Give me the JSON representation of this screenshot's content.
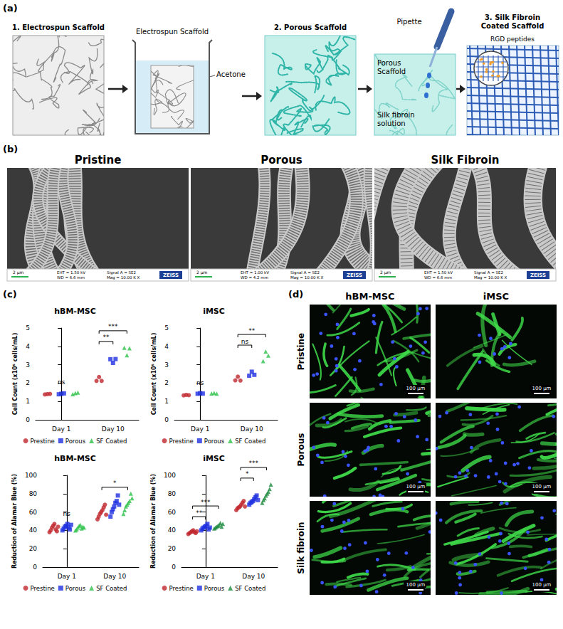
{
  "panel_labels": [
    "(a)",
    "(b)",
    "(c)",
    "(d)"
  ],
  "schematic": {
    "step1": "1. Electrospun Scaffold",
    "beaker_scaffold": "Electrospun Scaffold",
    "solvent": "Acetone",
    "step2": "2. Porous Scaffold",
    "pipette": "Pipette",
    "pipette_scaffold": "Porous Scaffold",
    "solution": "Silk fibroin solution",
    "step3": "3. Silk Fibroin Coated Scaffold",
    "inset": "RGD peptides"
  },
  "sem": {
    "logo": "ZEISS",
    "images": [
      {
        "title": "Pristine",
        "scale": "2 µm",
        "info": [
          "EHT = 1.50 kV",
          "WD = 6.6 mm",
          "Signal A = SE2",
          "Mag = 10.00 K X"
        ]
      },
      {
        "title": "Porous",
        "scale": "2 µm",
        "info": [
          "EHT = 1.00 kV",
          "WD = 4.2 mm",
          "Signal A = SE2",
          "Mag = 10.00 K X"
        ]
      },
      {
        "title": "Silk Fibroin",
        "scale": "2 µm",
        "info": [
          "EHT = 1.50 kV",
          "WD = 6.6 mm",
          "Signal A = SE2",
          "Mag = 10.00 K X"
        ]
      }
    ]
  },
  "chart_data": [
    {
      "type": "scatter",
      "title": "hBM-MSC",
      "y_label": "Cell Count (x10⁵ cells/mL)",
      "categories": [
        "Day 1",
        "Day 10"
      ],
      "ylim": [
        0,
        5
      ],
      "yticks": [
        0,
        1,
        2,
        3,
        4,
        5
      ],
      "grid": false,
      "legend": "bottom",
      "series": [
        {
          "name": "Prestine",
          "color": "#c1272d",
          "marker": "circle",
          "values": [
            [
              1.38,
              1.4,
              1.41
            ],
            [
              2.12,
              2.33,
              2.12
            ]
          ]
        },
        {
          "name": "Porous",
          "color": "#1f2fe0",
          "marker": "square",
          "values": [
            [
              1.39,
              1.42,
              1.44
            ],
            [
              3.3,
              3.1,
              3.31
            ]
          ]
        },
        {
          "name": "SF Coated",
          "color": "#2ec24a",
          "marker": "triangle",
          "values": [
            [
              1.4,
              1.45,
              1.48
            ],
            [
              3.92,
              3.52,
              3.9
            ]
          ]
        }
      ],
      "significance": [
        {
          "category": "Day 1",
          "label": "ns"
        },
        {
          "category": "Day 10",
          "from": "Prestine",
          "to": "Porous",
          "label": "**"
        },
        {
          "category": "Day 10",
          "from": "Prestine",
          "to": "SF Coated",
          "label": "***"
        }
      ]
    },
    {
      "type": "scatter",
      "title": "iMSC",
      "y_label": "Cell Count (x10⁵ cells/mL)",
      "categories": [
        "Day 1",
        "Day 10"
      ],
      "ylim": [
        0,
        5
      ],
      "yticks": [
        0,
        1,
        2,
        3,
        4,
        5
      ],
      "grid": false,
      "legend": "bottom",
      "series": [
        {
          "name": "Prestine",
          "color": "#c1272d",
          "marker": "circle",
          "values": [
            [
              1.33,
              1.36,
              1.34
            ],
            [
              2.15,
              2.35,
              2.14
            ]
          ]
        },
        {
          "name": "Porous",
          "color": "#1f2fe0",
          "marker": "square",
          "values": [
            [
              1.42,
              1.45,
              1.43
            ],
            [
              2.4,
              2.62,
              2.45
            ]
          ]
        },
        {
          "name": "SF Coated",
          "color": "#2ec24a",
          "marker": "triangle",
          "values": [
            [
              1.43,
              1.46,
              1.42
            ],
            [
              3.2,
              3.72,
              3.5
            ]
          ]
        }
      ],
      "significance": [
        {
          "category": "Day 1",
          "label": "ns"
        },
        {
          "category": "Day 10",
          "from": "Prestine",
          "to": "Porous",
          "label": "ns"
        },
        {
          "category": "Day 10",
          "from": "Prestine",
          "to": "SF Coated",
          "label": "**"
        }
      ]
    },
    {
      "type": "scatter",
      "title": "hBM-MSC",
      "y_label": "Reduction of Alamar Blue (%)",
      "categories": [
        "Day 1",
        "Day 10"
      ],
      "ylim": [
        0,
        100
      ],
      "yticks": [
        0,
        20,
        40,
        60,
        80,
        100
      ],
      "grid": false,
      "legend": "bottom",
      "series": [
        {
          "name": "Prestine",
          "color": "#c1272d",
          "marker": "circle",
          "values": [
            [
              38,
              40,
              43,
              45,
              47,
              41,
              39,
              44
            ],
            [
              52,
              55,
              58,
              60,
              62,
              65,
              68,
              57
            ]
          ]
        },
        {
          "name": "Porous",
          "color": "#1f2fe0",
          "marker": "square",
          "values": [
            [
              40,
              42,
              44,
              45,
              47,
              43,
              41,
              46
            ],
            [
              55,
              60,
              63,
              66,
              70,
              72,
              78,
              68
            ]
          ]
        },
        {
          "name": "SF Coated",
          "color": "#2ec24a",
          "marker": "triangle",
          "values": [
            [
              40,
              41,
              43,
              45,
              46,
              42,
              44,
              43
            ],
            [
              58,
              62,
              66,
              68,
              70,
              72,
              80,
              75
            ]
          ]
        }
      ],
      "significance": [
        {
          "category": "Day 1",
          "label": "ns"
        },
        {
          "category": "Day 10",
          "from": "Prestine",
          "to": "SF Coated",
          "label": "*"
        }
      ]
    },
    {
      "type": "scatter",
      "title": "iMSC",
      "y_label": "Reduction of Alamar Blue (%)",
      "categories": [
        "Day 1",
        "Day 10"
      ],
      "ylim": [
        0,
        100
      ],
      "yticks": [
        0,
        20,
        40,
        60,
        80,
        100
      ],
      "grid": false,
      "legend": "bottom",
      "series": [
        {
          "name": "Prestine",
          "color": "#c1272d",
          "marker": "circle",
          "values": [
            [
              36,
              37,
              38,
              39,
              40,
              38,
              37,
              39
            ],
            [
              62,
              64,
              65,
              66,
              68,
              70,
              72,
              66
            ]
          ]
        },
        {
          "name": "Porous",
          "color": "#1f2fe0",
          "marker": "square",
          "values": [
            [
              40,
              42,
              43,
              44,
              45,
              47,
              41,
              43
            ],
            [
              68,
              70,
              71,
              72,
              74,
              76,
              78,
              73
            ]
          ]
        },
        {
          "name": "SF Coated",
          "color": "#1c8a3c",
          "marker": "triangle",
          "values": [
            [
              42,
              43,
              44,
              45,
              46,
              48,
              44,
              47
            ],
            [
              70,
              73,
              75,
              78,
              80,
              82,
              85,
              90
            ]
          ]
        }
      ],
      "significance": [
        {
          "category": "Day 1",
          "from": "Prestine",
          "to": "Porous",
          "label": "**"
        },
        {
          "category": "Day 1",
          "from": "Prestine",
          "to": "SF Coated",
          "label": "***"
        },
        {
          "category": "Day 10",
          "from": "Prestine",
          "to": "Porous",
          "label": "*"
        },
        {
          "category": "Day 10",
          "from": "Prestine",
          "to": "SF Coated",
          "label": "***"
        }
      ]
    }
  ],
  "fluorescence": {
    "columns": [
      "hBM-MSC",
      "iMSC"
    ],
    "rows": [
      "Pristine",
      "Porous",
      "Silk fibroin"
    ],
    "scale": "100 µm"
  }
}
